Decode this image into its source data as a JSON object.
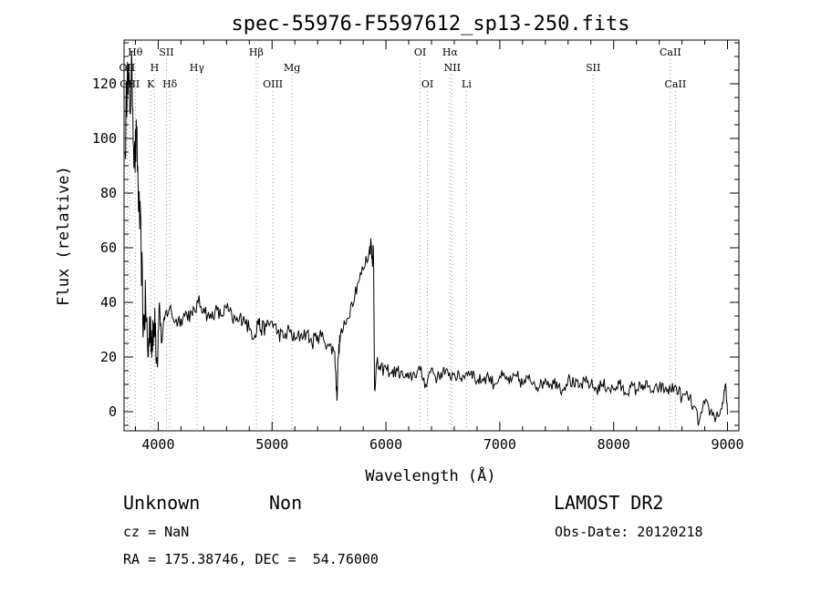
{
  "chart_data": {
    "type": "line",
    "title": "spec-55976-F5597612_sp13-250.fits",
    "xlabel": "Wavelength (Å)",
    "ylabel": "Flux (relative)",
    "xlim": [
      3700,
      9100
    ],
    "ylim": [
      -7,
      136
    ],
    "xticks": [
      4000,
      5000,
      6000,
      7000,
      8000,
      9000
    ],
    "yticks": [
      0,
      20,
      40,
      60,
      80,
      100,
      120
    ],
    "grid": false,
    "line_color": "#000000",
    "marker_color": "#999999",
    "series": [
      {
        "x": [
          3710,
          3730,
          3750,
          3770,
          3790,
          3810,
          3830,
          3850,
          3870,
          3890,
          3910,
          3930,
          3950,
          3970,
          3990,
          4010,
          4030,
          4060,
          4100,
          4150,
          4200,
          4250,
          4300,
          4350,
          4400,
          4450,
          4500,
          4550,
          4600,
          4650,
          4700,
          4750,
          4800,
          4850,
          4880,
          4900,
          4950,
          5000,
          5050,
          5100,
          5150,
          5200,
          5250,
          5300,
          5350,
          5400,
          5450,
          5500,
          5550,
          5570,
          5580,
          5600,
          5650,
          5700,
          5750,
          5800,
          5850,
          5870,
          5880,
          5890,
          5900,
          5920,
          5950,
          6000,
          6050,
          6100,
          6150,
          6200,
          6250,
          6300,
          6350,
          6400,
          6450,
          6500,
          6550,
          6600,
          6650,
          6700,
          6750,
          6800,
          6850,
          6900,
          6950,
          7000,
          7050,
          7100,
          7150,
          7200,
          7250,
          7300,
          7350,
          7400,
          7450,
          7500,
          7550,
          7600,
          7650,
          7700,
          7750,
          7800,
          7850,
          7900,
          7950,
          8000,
          8050,
          8100,
          8150,
          8200,
          8250,
          8300,
          8350,
          8400,
          8450,
          8500,
          8550,
          8600,
          8650,
          8700,
          8750,
          8800,
          8850,
          8900,
          8950,
          8980,
          9000
        ],
        "y": [
          95,
          128,
          110,
          125,
          90,
          100,
          75,
          60,
          30,
          40,
          20,
          35,
          22,
          38,
          18,
          40,
          25,
          35,
          38,
          33,
          34,
          36,
          35,
          40,
          38,
          34,
          37,
          35,
          38,
          34,
          33,
          35,
          30,
          28,
          34,
          30,
          31,
          33,
          29,
          27,
          30,
          26,
          28,
          29,
          25,
          28,
          27,
          24,
          22,
          4,
          20,
          28,
          32,
          40,
          47,
          52,
          58,
          62,
          55,
          60,
          8,
          18,
          15,
          16,
          14,
          15,
          13,
          12,
          14,
          15,
          10,
          16,
          12,
          15,
          13,
          14,
          12,
          14,
          15,
          11,
          12,
          13,
          10,
          13,
          12,
          11,
          13,
          10,
          12,
          11,
          9,
          12,
          10,
          11,
          8,
          12,
          10,
          9,
          11,
          10,
          8,
          10,
          9,
          8,
          10,
          7,
          9,
          8,
          10,
          9,
          7,
          9,
          8,
          8,
          9,
          5,
          6,
          2,
          -4,
          3,
          0,
          -2,
          1,
          10,
          -1
        ]
      }
    ],
    "spectral_lines": [
      {
        "name": "Hθ",
        "x": 3798,
        "row": 1
      },
      {
        "name": "OII",
        "x": 3727,
        "row": 2
      },
      {
        "name": "OIII",
        "x": 3750,
        "row": 3
      },
      {
        "name": "SII",
        "x": 4072,
        "row": 1
      },
      {
        "name": "H",
        "x": 3968,
        "row": 2
      },
      {
        "name": "K",
        "x": 3934,
        "row": 3
      },
      {
        "name": "Hδ",
        "x": 4102,
        "row": 3
      },
      {
        "name": "Hγ",
        "x": 4340,
        "row": 2
      },
      {
        "name": "Hβ",
        "x": 4861,
        "row": 1
      },
      {
        "name": "Mg",
        "x": 5175,
        "row": 2
      },
      {
        "name": "OIII",
        "x": 5007,
        "row": 3
      },
      {
        "name": "OI",
        "x": 6300,
        "row": 1
      },
      {
        "name": "OI",
        "x": 6364,
        "row": 3
      },
      {
        "name": "Hα",
        "x": 6563,
        "row": 1
      },
      {
        "name": "NII",
        "x": 6583,
        "row": 2
      },
      {
        "name": "Li",
        "x": 6708,
        "row": 3
      },
      {
        "name": "SII",
        "x": 7820,
        "row": 2
      },
      {
        "name": "CaII",
        "x": 8498,
        "row": 1
      },
      {
        "name": "CaII",
        "x": 8542,
        "row": 3
      }
    ]
  },
  "info": {
    "class_name": "Unknown",
    "subclass": "Non",
    "survey": "LAMOST DR2",
    "cz": "cz = NaN",
    "obs_date": "Obs-Date: 20120218",
    "coords": "RA = 175.38746, DEC =  54.76000"
  }
}
